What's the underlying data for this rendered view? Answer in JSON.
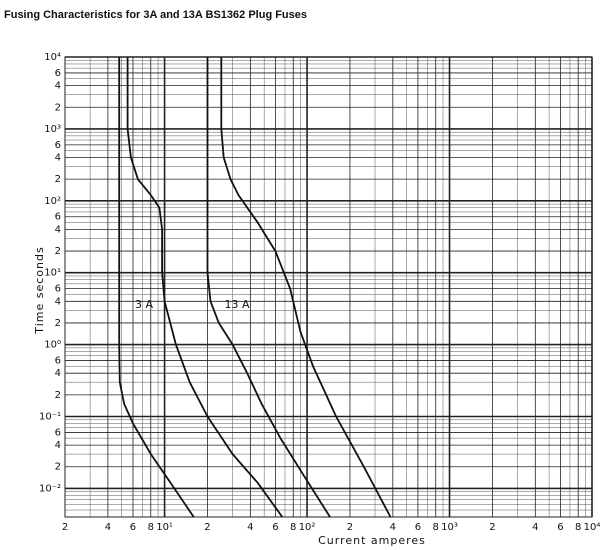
{
  "chart_data": {
    "type": "line",
    "title": "Fusing Characteristics for 3A and 13A BS1362 Plug Fuses",
    "xlabel": "Current    amperes",
    "ylabel": "Time    seconds",
    "xscale": "log",
    "yscale": "log",
    "grid": true,
    "xlim": [
      2,
      10000
    ],
    "ylim": [
      0.004,
      10000
    ],
    "xticks": [
      2,
      4,
      6,
      8,
      {
        "value": 10,
        "label": "10¹"
      },
      {
        "value": 20,
        "label": "2"
      },
      {
        "value": 40,
        "label": "4"
      },
      {
        "value": 60,
        "label": "6"
      },
      {
        "value": 80,
        "label": "8"
      },
      {
        "value": 100,
        "label": "10²"
      },
      {
        "value": 200,
        "label": "2"
      },
      {
        "value": 400,
        "label": "4"
      },
      {
        "value": 600,
        "label": "6"
      },
      {
        "value": 800,
        "label": "8"
      },
      {
        "value": 1000,
        "label": "10³"
      },
      {
        "value": 2000,
        "label": "2"
      },
      {
        "value": 4000,
        "label": "4"
      },
      {
        "value": 6000,
        "label": "6"
      },
      {
        "value": 8000,
        "label": "8"
      },
      {
        "value": 10000,
        "label": "10⁴"
      }
    ],
    "xminor": [
      3,
      5,
      7,
      9,
      30,
      50,
      70,
      90,
      300,
      500,
      700,
      900,
      3000,
      5000,
      7000,
      9000
    ],
    "yticks": [
      {
        "value": 10000,
        "label": "10⁴"
      },
      {
        "value": 6000,
        "label": "6"
      },
      {
        "value": 4000,
        "label": "4"
      },
      {
        "value": 2000,
        "label": "2"
      },
      {
        "value": 1000,
        "label": "10³"
      },
      {
        "value": 600,
        "label": "6"
      },
      {
        "value": 400,
        "label": "4"
      },
      {
        "value": 200,
        "label": "2"
      },
      {
        "value": 100,
        "label": "10²"
      },
      {
        "value": 60,
        "label": "6"
      },
      {
        "value": 40,
        "label": "4"
      },
      {
        "value": 20,
        "label": "2"
      },
      {
        "value": 10,
        "label": "10¹"
      },
      6,
      4,
      2,
      {
        "value": 1,
        "label": "10⁰"
      },
      {
        "value": 0.6,
        "label": "6"
      },
      {
        "value": 0.4,
        "label": "4"
      },
      {
        "value": 0.2,
        "label": "2"
      },
      {
        "value": 0.1,
        "label": "10⁻¹"
      },
      {
        "value": 0.06,
        "label": "6"
      },
      {
        "value": 0.04,
        "label": "4"
      },
      {
        "value": 0.02,
        "label": "2"
      },
      {
        "value": 0.01,
        "label": "10⁻²"
      }
    ],
    "yminor": [
      0.005,
      0.006,
      0.007,
      0.008,
      0.009,
      0.03,
      0.05,
      0.07,
      0.08,
      0.09,
      0.3,
      0.5,
      0.7,
      0.8,
      0.9,
      3,
      5,
      7,
      8,
      9,
      30,
      50,
      70,
      80,
      90,
      300,
      500,
      700,
      800,
      900,
      3000,
      5000,
      7000,
      8000,
      9000
    ],
    "annotations": [
      "3 A",
      "13 A"
    ],
    "series": [
      {
        "color": "#111111",
        "x": [
          4.8,
          4.8,
          4.85,
          5.2,
          6,
          8,
          11,
          16
        ],
        "values": [
          10000,
          1,
          0.3,
          0.15,
          0.08,
          0.03,
          0.012,
          0.004
        ]
      },
      {
        "color": "#111111",
        "x": [
          5.5,
          5.5,
          5.8,
          6.5,
          8,
          9.2,
          9.6,
          9.6,
          10,
          12,
          15,
          20,
          30,
          45,
          67
        ],
        "values": [
          10000,
          1000,
          400,
          200,
          120,
          80,
          40,
          10,
          4,
          1,
          0.3,
          0.1,
          0.03,
          0.012,
          0.004
        ]
      },
      {
        "color": "#111111",
        "x": [
          20,
          20,
          21,
          24,
          30,
          38,
          48,
          65,
          95,
          145
        ],
        "values": [
          10000,
          10,
          4,
          2,
          1,
          0.4,
          0.15,
          0.05,
          0.015,
          0.004
        ]
      },
      {
        "color": "#111111",
        "x": [
          25,
          25,
          26,
          29,
          33,
          45,
          60,
          76,
          90,
          110,
          160,
          250,
          385
        ],
        "values": [
          10000,
          1000,
          400,
          200,
          120,
          50,
          20,
          6,
          1.5,
          0.5,
          0.1,
          0.02,
          0.004
        ]
      }
    ]
  }
}
